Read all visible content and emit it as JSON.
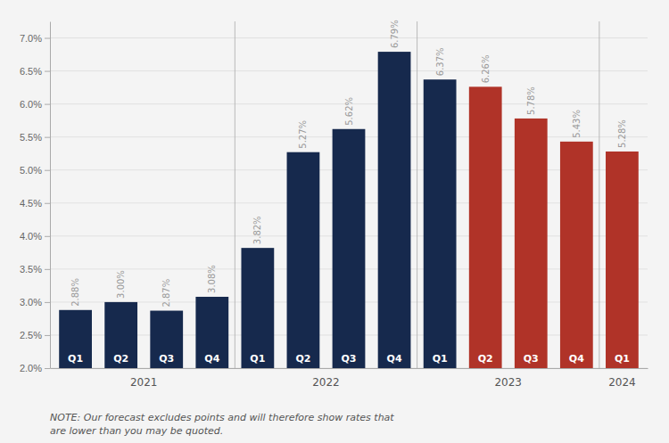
{
  "chart_data": {
    "type": "bar",
    "categories": [
      "Q1",
      "Q2",
      "Q3",
      "Q4",
      "Q1",
      "Q2",
      "Q3",
      "Q4",
      "Q1",
      "Q2",
      "Q3",
      "Q4",
      "Q1"
    ],
    "values": [
      2.88,
      3.0,
      2.87,
      3.08,
      3.82,
      5.27,
      5.62,
      6.79,
      6.37,
      6.26,
      5.78,
      5.43,
      5.28
    ],
    "value_labels": [
      "2.88%",
      "3.00%",
      "2.87%",
      "3.08%",
      "3.82%",
      "5.27%",
      "5.62%",
      "6.79%",
      "6.37%",
      "6.26%",
      "5.78%",
      "5.43%",
      "5.28%"
    ],
    "colors": [
      "#16294d",
      "#16294d",
      "#16294d",
      "#16294d",
      "#16294d",
      "#16294d",
      "#16294d",
      "#16294d",
      "#16294d",
      "#b03328",
      "#b03328",
      "#b03328",
      "#b03328"
    ],
    "group_labels": [
      "2021",
      "2022",
      "2023",
      "2024"
    ],
    "annotations": [
      "NOTE: Our forecast excludes points and will therefore show rates that",
      "are lower than you may be quoted."
    ],
    "ylim": [
      2.0,
      7.25
    ],
    "yticks": [
      {
        "value": 2.0,
        "label": "2.0%"
      },
      {
        "value": 2.5,
        "label": "2.5%"
      },
      {
        "value": 3.0,
        "label": "3.0%"
      },
      {
        "value": 3.5,
        "label": "3.5%"
      },
      {
        "value": 4.0,
        "label": "4.0%"
      },
      {
        "value": 4.5,
        "label": "4.5%"
      },
      {
        "value": 5.0,
        "label": "5.0%"
      },
      {
        "value": 5.5,
        "label": "5.5%"
      },
      {
        "value": 6.0,
        "label": "6.0%"
      },
      {
        "value": 6.5,
        "label": "6.5%"
      },
      {
        "value": 7.0,
        "label": "7.0%"
      }
    ],
    "grid": true,
    "data_labels": true,
    "tick_labels": "y"
  }
}
